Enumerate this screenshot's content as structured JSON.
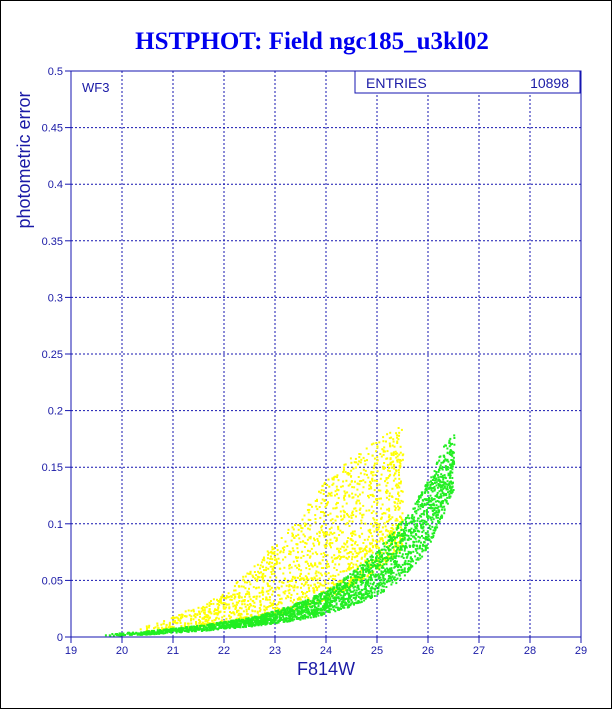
{
  "chart_data": {
    "type": "scatter",
    "title": "HSTPHOT: Field ngc185_u3kl02",
    "xlabel": "F814W",
    "ylabel": "photometric error",
    "panel_label": "WF3",
    "stats_box": {
      "label": "ENTRIES",
      "value": "10898"
    },
    "xlim": [
      19,
      29
    ],
    "ylim": [
      0,
      0.5
    ],
    "xticks": [
      "19",
      "20",
      "21",
      "22",
      "23",
      "24",
      "25",
      "26",
      "27",
      "28",
      "29"
    ],
    "yticks": [
      "0",
      "0.05",
      "0.1",
      "0.15",
      "0.2",
      "0.25",
      "0.3",
      "0.35",
      "0.4",
      "0.45",
      "0.5"
    ],
    "grid": true,
    "colors": {
      "text": "#1a1aa6",
      "title": "#0000ee",
      "green": "#22ee22",
      "yellow": "#ffff00"
    },
    "series": [
      {
        "color": "#22ee22",
        "envelope": {
          "x": [
            19.6,
            20.5,
            21.5,
            22.5,
            23.0,
            23.5,
            24.0,
            24.5,
            25.0,
            25.3,
            25.6,
            25.8,
            26.0,
            26.1,
            26.2,
            26.3,
            26.5
          ],
          "y_min": [
            0.001,
            0.003,
            0.006,
            0.01,
            0.013,
            0.016,
            0.021,
            0.028,
            0.038,
            0.046,
            0.058,
            0.068,
            0.08,
            0.09,
            0.1,
            0.11,
            0.13
          ],
          "y_max": [
            0.003,
            0.006,
            0.011,
            0.018,
            0.024,
            0.032,
            0.042,
            0.058,
            0.078,
            0.095,
            0.11,
            0.125,
            0.14,
            0.15,
            0.16,
            0.17,
            0.18
          ]
        }
      },
      {
        "color": "#ffff00",
        "envelope": {
          "x": [
            20.3,
            21.0,
            21.5,
            22.0,
            22.5,
            23.0,
            23.5,
            24.0,
            24.5,
            25.0,
            25.5
          ],
          "y_min": [
            0.005,
            0.008,
            0.01,
            0.013,
            0.016,
            0.02,
            0.026,
            0.034,
            0.046,
            0.06,
            0.08
          ],
          "y_max": [
            0.012,
            0.02,
            0.028,
            0.04,
            0.06,
            0.085,
            0.11,
            0.14,
            0.16,
            0.175,
            0.19
          ]
        }
      }
    ]
  }
}
